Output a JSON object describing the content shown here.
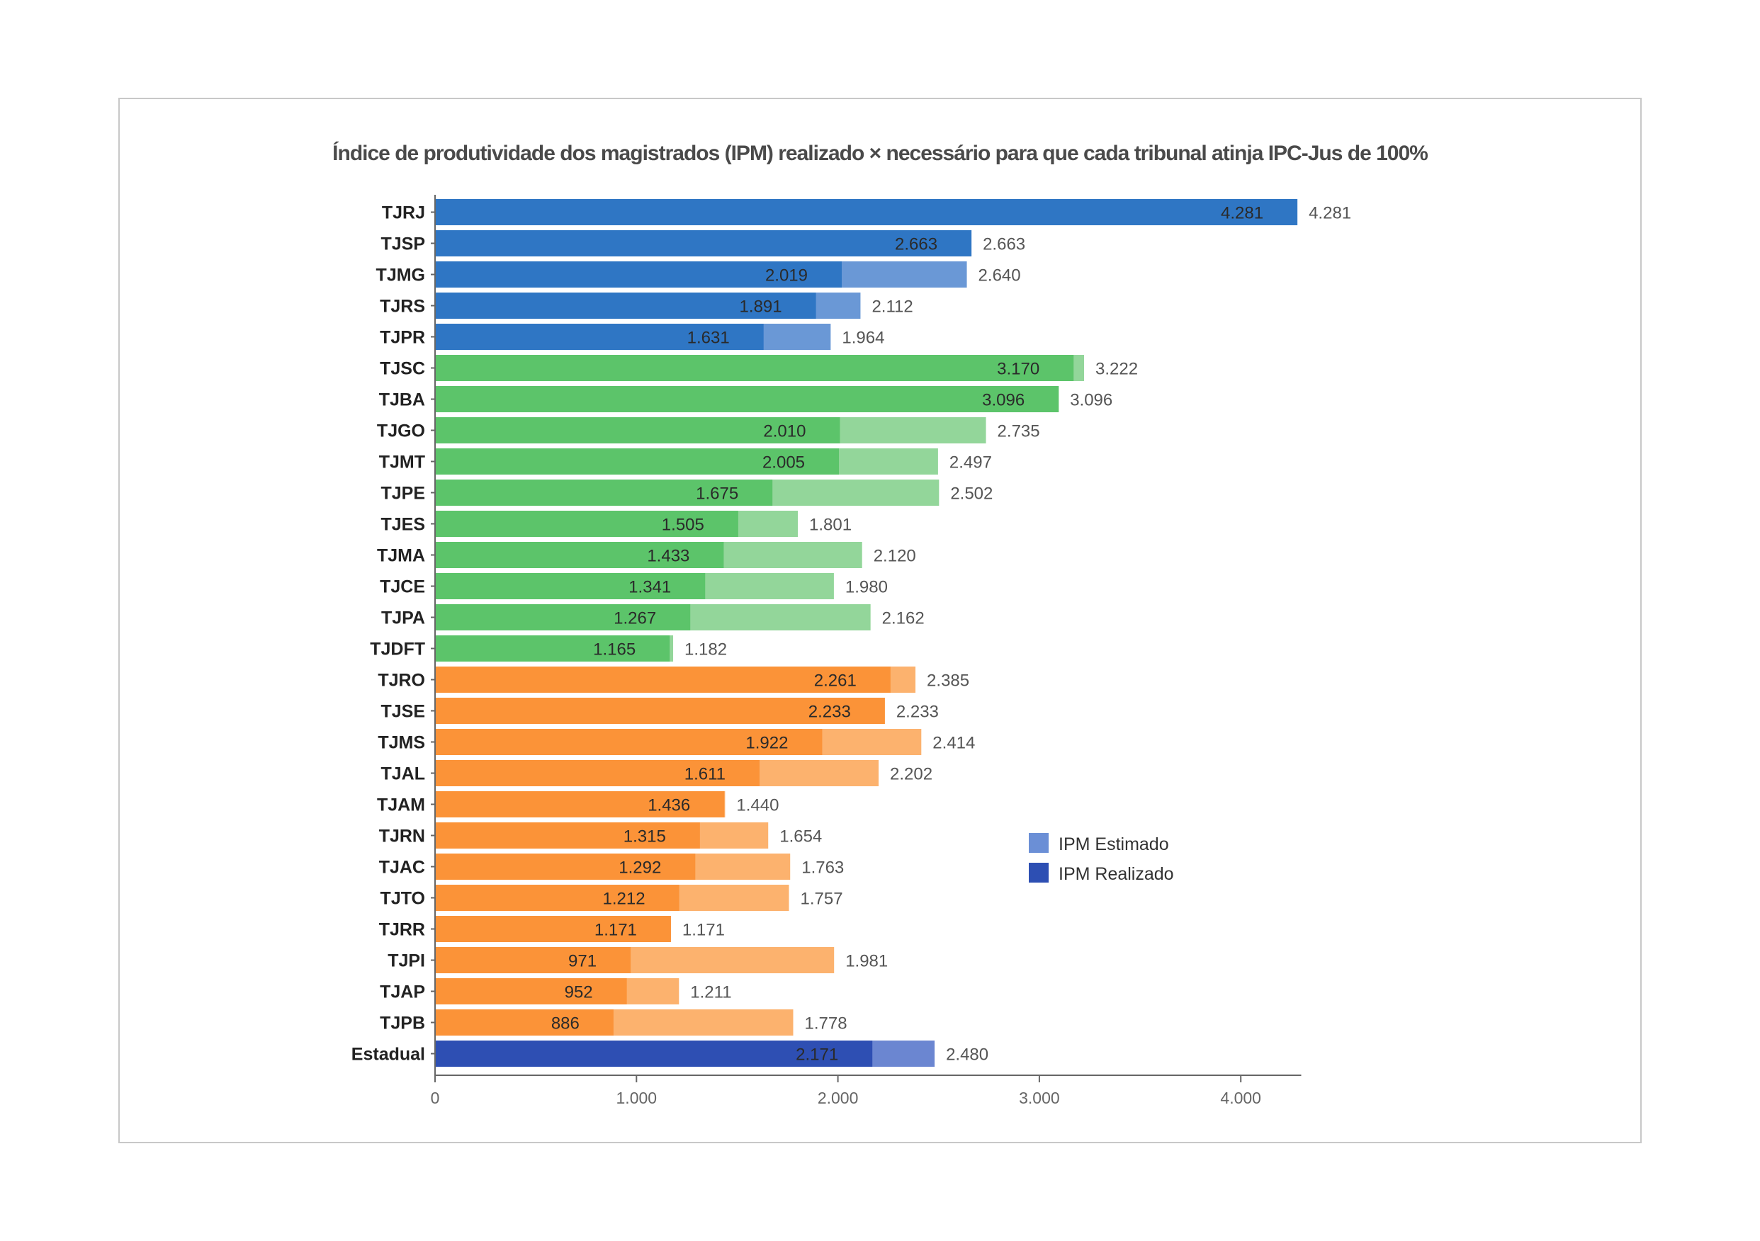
{
  "chart_data": {
    "type": "bar",
    "orientation": "horizontal",
    "stacked": "overlay",
    "title": "Índice de produtividade dos magistrados (IPM) realizado × necessário para que cada tribunal atinja IPC-Jus de 100%",
    "xlabel": "",
    "ylabel": "",
    "xlim": [
      0,
      4300
    ],
    "xticks": [
      0,
      1000,
      2000,
      3000,
      4000
    ],
    "xtick_labels": [
      "0",
      "1.000",
      "2.000",
      "3.000",
      "4.000"
    ],
    "grid": false,
    "legend_position": "right",
    "legend": [
      {
        "name": "IPM Estimado",
        "color": "#6b8fd6"
      },
      {
        "name": "IPM Realizado",
        "color": "#2d4fb3"
      }
    ],
    "categories": [
      "TJRJ",
      "TJSP",
      "TJMG",
      "TJRS",
      "TJPR",
      "TJSC",
      "TJBA",
      "TJGO",
      "TJMT",
      "TJPE",
      "TJES",
      "TJMA",
      "TJCE",
      "TJPA",
      "TJDFT",
      "TJRO",
      "TJSE",
      "TJMS",
      "TJAL",
      "TJAM",
      "TJRN",
      "TJAC",
      "TJTO",
      "TJRR",
      "TJPI",
      "TJAP",
      "TJPB",
      "Estadual"
    ],
    "groups": [
      "large",
      "large",
      "large",
      "large",
      "large",
      "medium",
      "medium",
      "medium",
      "medium",
      "medium",
      "medium",
      "medium",
      "medium",
      "medium",
      "medium",
      "small",
      "small",
      "small",
      "small",
      "small",
      "small",
      "small",
      "small",
      "small",
      "small",
      "small",
      "small",
      "total"
    ],
    "series": [
      {
        "name": "IPM Realizado",
        "values": [
          4281,
          2663,
          2019,
          1891,
          1631,
          3170,
          3096,
          2010,
          2005,
          1675,
          1505,
          1433,
          1341,
          1267,
          1165,
          2261,
          2233,
          1922,
          1611,
          1436,
          1315,
          1292,
          1212,
          1171,
          971,
          952,
          886,
          2171
        ],
        "labels": [
          "4.281",
          "2.663",
          "2.019",
          "1.891",
          "1.631",
          "3.170",
          "3.096",
          "2.010",
          "2.005",
          "1.675",
          "1.505",
          "1.433",
          "1.341",
          "1.267",
          "1.165",
          "2.261",
          "2.233",
          "1.922",
          "1.611",
          "1.436",
          "1.315",
          "1.292",
          "1.212",
          "1.171",
          "971",
          "952",
          "886",
          "2.171"
        ]
      },
      {
        "name": "IPM Estimado",
        "values": [
          4281,
          2663,
          2640,
          2112,
          1964,
          3222,
          3096,
          2735,
          2497,
          2502,
          1801,
          2120,
          1980,
          2162,
          1182,
          2385,
          2233,
          2414,
          2202,
          1440,
          1654,
          1763,
          1757,
          1171,
          1981,
          1211,
          1778,
          2480
        ],
        "labels": [
          "4.281",
          "2.663",
          "2.640",
          "2.112",
          "1.964",
          "3.222",
          "3.096",
          "2.735",
          "2.497",
          "2.502",
          "1.801",
          "2.120",
          "1.980",
          "2.162",
          "1.182",
          "2.385",
          "2.233",
          "2.414",
          "2.202",
          "1.440",
          "1.654",
          "1.763",
          "1.757",
          "1.171",
          "1.981",
          "1.211",
          "1.778",
          "2.480"
        ]
      }
    ],
    "colors": {
      "large": {
        "realizado": "#2f76c4",
        "estimado": "#6a98d6"
      },
      "medium": {
        "realizado": "#5cc46a",
        "estimado": "#93d69a"
      },
      "small": {
        "realizado": "#fb9338",
        "estimado": "#fcb26e"
      },
      "total": {
        "realizado": "#2e4fb3",
        "estimado": "#6b86d1"
      }
    }
  }
}
